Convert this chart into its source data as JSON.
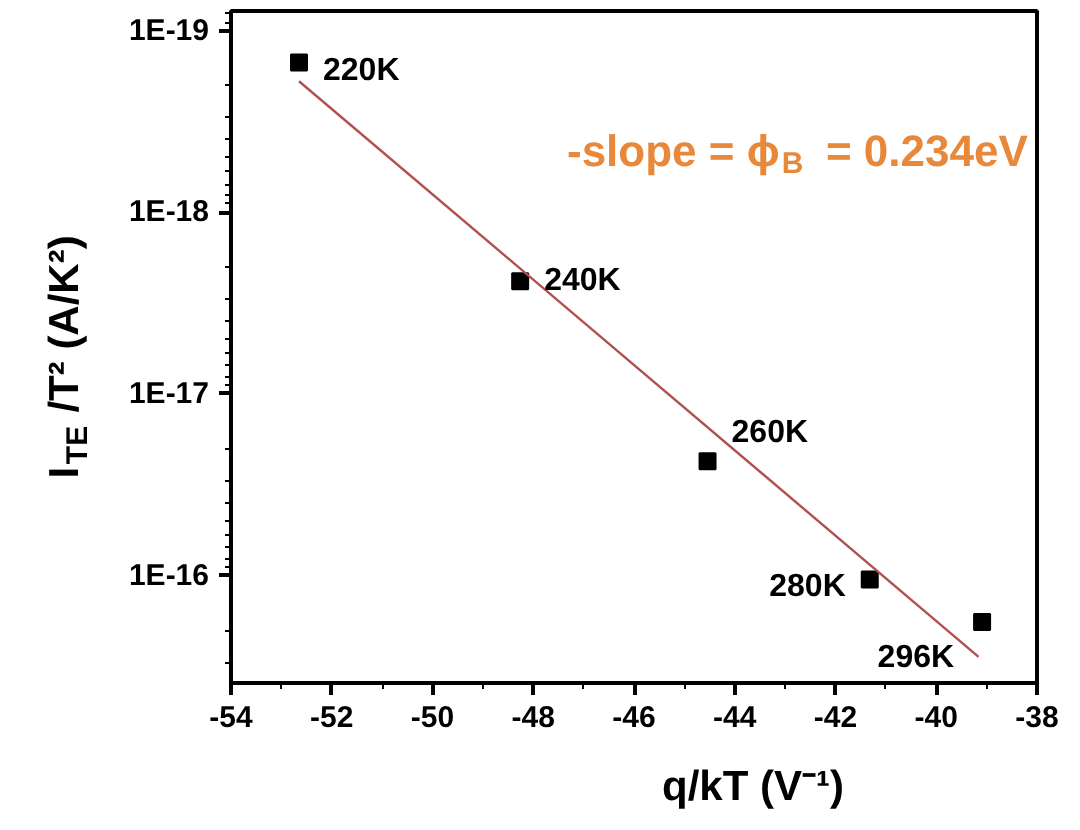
{
  "chart_data": {
    "type": "scatter",
    "xlabel": "q/kT (V⁻¹)",
    "ylabel": "I$_{TE}$/T² (A/K²)",
    "log": "y",
    "xlim": [
      -54,
      -38
    ],
    "ylim": [
      3.9e-16,
      7.8e-20
    ],
    "xticks": [
      -54,
      -52,
      -50,
      -48,
      -46,
      -44,
      -42,
      -40,
      -38
    ],
    "yticks": [
      {
        "value": 1e-19,
        "label": "1E-19"
      },
      {
        "value": 1e-18,
        "label": "1E-18"
      },
      {
        "value": 1e-17,
        "label": "1E-17"
      },
      {
        "value": 1e-16,
        "label": "1E-16"
      }
    ],
    "grid": false,
    "x": [
      -52.65,
      -48.26,
      -44.54,
      -41.32,
      -39.09
    ],
    "series": [
      {
        "type": "scatter",
        "marker": "square",
        "color": "#000000",
        "values": [
          1.5e-19,
          2.4e-18,
          2.35e-17,
          1.05e-16,
          1.8e-16
        ]
      },
      {
        "type": "line",
        "color": "#b05050",
        "x": [
          -52.65,
          -39.16
        ],
        "values": [
          1.9e-19,
          2.8e-16
        ]
      }
    ],
    "annotations": [
      {
        "text": "220K",
        "x": -52.65,
        "y": 1.5e-19
      },
      {
        "text": "240K",
        "x": -48.26,
        "y": 2.4e-18
      },
      {
        "text": "260K",
        "x": -44.54,
        "y": 2.35e-17
      },
      {
        "text": "280K",
        "x": -41.32,
        "y": 1.05e-16
      },
      {
        "text": "296K",
        "x": -39.09,
        "y": 1.8e-16
      },
      "-slope = ϕ$_{B}$ = 0.234eV"
    ]
  }
}
